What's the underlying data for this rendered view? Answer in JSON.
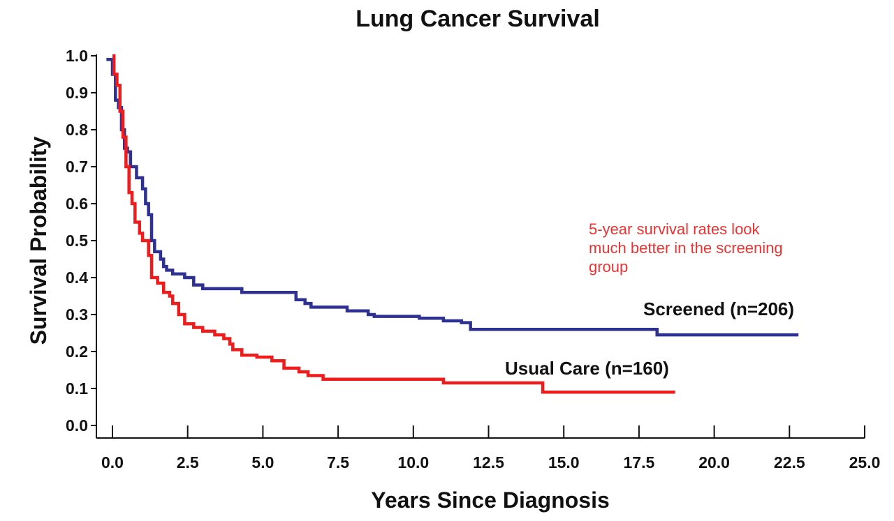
{
  "chart_data": {
    "type": "line",
    "title": "Lung Cancer Survival",
    "xlabel": "Years Since Diagnosis",
    "ylabel": "Survival Probability",
    "xlim": [
      0,
      25
    ],
    "ylim": [
      0,
      1
    ],
    "x_ticks": [
      "0.0",
      "2.5",
      "5.0",
      "7.5",
      "10.0",
      "12.5",
      "15.0",
      "17.5",
      "20.0",
      "22.5",
      "25.0"
    ],
    "y_ticks": [
      "0.0",
      "0.1",
      "0.2",
      "0.3",
      "0.4",
      "0.5",
      "0.6",
      "0.7",
      "0.8",
      "0.9",
      "1.0"
    ],
    "grid": false,
    "legend": "none",
    "series": [
      {
        "name": "Screened (n=206)",
        "color": "#2e3192",
        "step": true,
        "points": [
          [
            -0.2,
            0.99
          ],
          [
            0.0,
            0.95
          ],
          [
            0.1,
            0.88
          ],
          [
            0.2,
            0.86
          ],
          [
            0.3,
            0.8
          ],
          [
            0.4,
            0.75
          ],
          [
            0.5,
            0.74
          ],
          [
            0.6,
            0.7
          ],
          [
            0.8,
            0.67
          ],
          [
            1.0,
            0.64
          ],
          [
            1.1,
            0.6
          ],
          [
            1.2,
            0.57
          ],
          [
            1.3,
            0.5
          ],
          [
            1.4,
            0.47
          ],
          [
            1.6,
            0.45
          ],
          [
            1.7,
            0.43
          ],
          [
            1.8,
            0.42
          ],
          [
            2.0,
            0.41
          ],
          [
            2.4,
            0.4
          ],
          [
            2.7,
            0.38
          ],
          [
            3.0,
            0.37
          ],
          [
            4.3,
            0.36
          ],
          [
            5.0,
            0.36
          ],
          [
            6.1,
            0.34
          ],
          [
            6.4,
            0.33
          ],
          [
            6.6,
            0.32
          ],
          [
            7.5,
            0.32
          ],
          [
            7.8,
            0.31
          ],
          [
            8.5,
            0.3
          ],
          [
            8.7,
            0.295
          ],
          [
            9.8,
            0.295
          ],
          [
            10.2,
            0.29
          ],
          [
            11.0,
            0.283
          ],
          [
            11.6,
            0.278
          ],
          [
            11.9,
            0.26
          ],
          [
            18.0,
            0.26
          ],
          [
            18.1,
            0.245
          ],
          [
            22.8,
            0.245
          ]
        ]
      },
      {
        "name": "Usual Care (n=160)",
        "color": "#ee1c1c",
        "step": true,
        "points": [
          [
            0.0,
            1.0
          ],
          [
            0.05,
            0.95
          ],
          [
            0.15,
            0.92
          ],
          [
            0.25,
            0.85
          ],
          [
            0.35,
            0.78
          ],
          [
            0.45,
            0.7
          ],
          [
            0.55,
            0.63
          ],
          [
            0.65,
            0.6
          ],
          [
            0.75,
            0.55
          ],
          [
            0.9,
            0.52
          ],
          [
            1.0,
            0.5
          ],
          [
            1.2,
            0.46
          ],
          [
            1.3,
            0.4
          ],
          [
            1.5,
            0.385
          ],
          [
            1.7,
            0.36
          ],
          [
            1.9,
            0.35
          ],
          [
            2.0,
            0.33
          ],
          [
            2.2,
            0.3
          ],
          [
            2.4,
            0.275
          ],
          [
            2.7,
            0.265
          ],
          [
            3.0,
            0.255
          ],
          [
            3.4,
            0.245
          ],
          [
            3.7,
            0.235
          ],
          [
            3.9,
            0.22
          ],
          [
            4.0,
            0.205
          ],
          [
            4.3,
            0.19
          ],
          [
            4.8,
            0.185
          ],
          [
            5.3,
            0.175
          ],
          [
            5.7,
            0.155
          ],
          [
            6.2,
            0.145
          ],
          [
            6.5,
            0.135
          ],
          [
            7.0,
            0.125
          ],
          [
            8.0,
            0.125
          ],
          [
            10.5,
            0.125
          ],
          [
            11.0,
            0.115
          ],
          [
            14.2,
            0.115
          ],
          [
            14.3,
            0.09
          ],
          [
            18.7,
            0.09
          ]
        ]
      }
    ],
    "series_labels": [
      "Screened (n=206)",
      "Usual Care (n=160)"
    ],
    "annotation": {
      "text_lines": [
        "5-year survival rates look",
        "much better in the screening",
        "group"
      ],
      "color": "#ee3333"
    }
  }
}
